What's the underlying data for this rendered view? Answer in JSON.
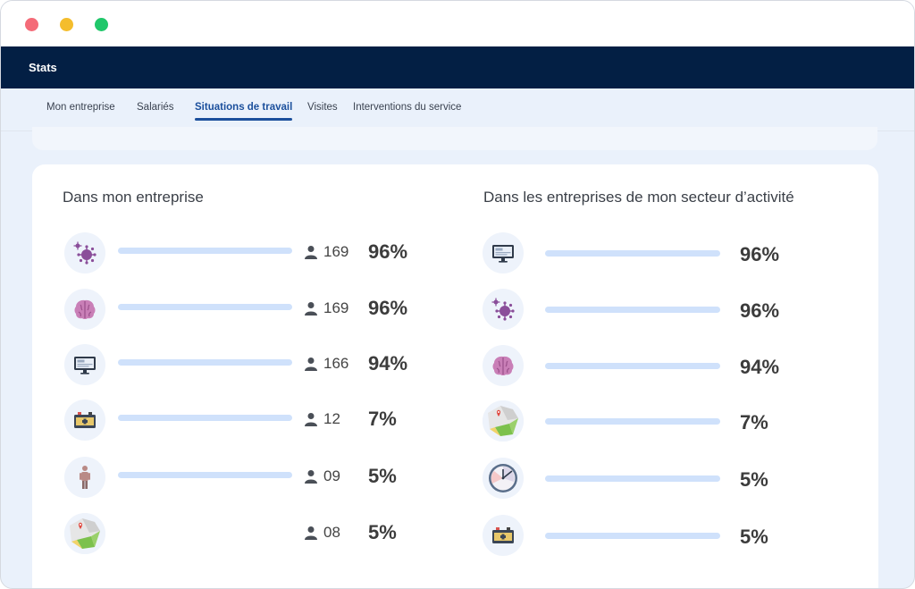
{
  "app": {
    "title": "Stats"
  },
  "tabs": [
    {
      "label": "Mon entreprise",
      "active": false
    },
    {
      "label": "Salariés",
      "active": false
    },
    {
      "label": "Situations de travail",
      "active": true
    },
    {
      "label": "Visites",
      "active": false
    },
    {
      "label": "Interventions du service",
      "active": false
    }
  ],
  "left": {
    "title": "Dans mon entreprise",
    "rows": [
      {
        "icon": "virus-icon",
        "count": "169",
        "percent": "96%",
        "has_bar": true
      },
      {
        "icon": "brain-icon",
        "count": "169",
        "percent": "96%",
        "has_bar": true
      },
      {
        "icon": "monitor-icon",
        "count": "166",
        "percent": "94%",
        "has_bar": true
      },
      {
        "icon": "battery-icon",
        "count": "12",
        "percent": "7%",
        "has_bar": true
      },
      {
        "icon": "standing-person-icon",
        "count": "09",
        "percent": "5%",
        "has_bar": true
      },
      {
        "icon": "map-icon",
        "count": "08",
        "percent": "5%",
        "has_bar": false
      }
    ]
  },
  "right": {
    "title": "Dans les entreprises de mon secteur d’activité",
    "rows": [
      {
        "icon": "monitor-icon",
        "percent": "96%"
      },
      {
        "icon": "virus-icon",
        "percent": "96%"
      },
      {
        "icon": "brain-icon",
        "percent": "94%"
      },
      {
        "icon": "map-icon",
        "percent": "7%"
      },
      {
        "icon": "clock-icon",
        "percent": "5%"
      },
      {
        "icon": "battery-icon",
        "percent": "5%"
      }
    ]
  },
  "colors": {
    "appbar": "#031f44",
    "accent": "#1b4f9c",
    "bar": "#cfe1fb"
  }
}
